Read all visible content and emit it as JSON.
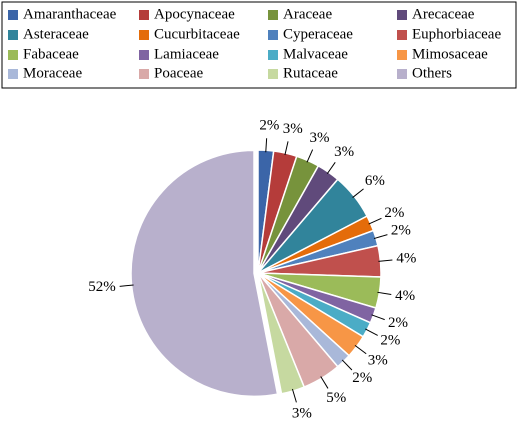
{
  "chart_data": {
    "type": "pie",
    "categories": [
      "Amaranthaceae",
      "Apocynaceae",
      "Araceae",
      "Arecaceae",
      "Asteraceae",
      "Cucurbitaceae",
      "Cyperaceae",
      "Euphorbiaceae",
      "Fabaceae",
      "Lamiaceae",
      "Malvaceae",
      "Mimosaceae",
      "Moraceae",
      "Poaceae",
      "Rutaceae",
      "Others"
    ],
    "values": [
      2,
      3,
      3,
      3,
      6,
      2,
      2,
      4,
      4,
      2,
      2,
      3,
      2,
      5,
      3,
      52
    ],
    "value_labels": [
      "2%",
      "3%",
      "3%",
      "3%",
      "6%",
      "2%",
      "2%",
      "4%",
      "4%",
      "2%",
      "2%",
      "3%",
      "2%",
      "5%",
      "3%",
      "52%"
    ],
    "colors": [
      "#3b65a8",
      "#b53c3a",
      "#77933c",
      "#604a7b",
      "#31849b",
      "#e46c0a",
      "#4f81bd",
      "#c0504d",
      "#9bbb59",
      "#8064a2",
      "#4bacc6",
      "#f79646",
      "#a9b8d9",
      "#d9a9a8",
      "#c6d9a0",
      "#b8b0cc"
    ],
    "legend": "top"
  }
}
